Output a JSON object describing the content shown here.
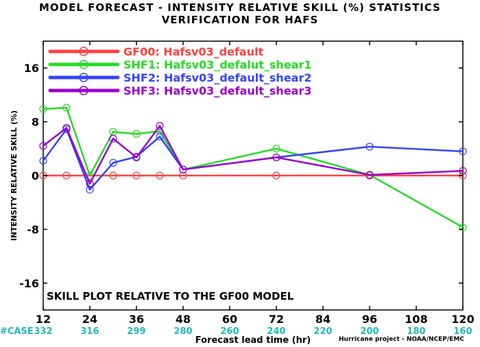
{
  "colors": {
    "GF00": "#ff4040",
    "SHF1": "#22dd22",
    "SHF2": "#3344ff",
    "SHF3": "#9900cc",
    "case_text": "#22b8b8"
  },
  "credit": "Hurricane project - NOAA/NCEP/EMC",
  "chart_data": {
    "type": "line",
    "title": "MODEL FORECAST - INTENSITY RELATIVE SKILL (%) STATISTICS",
    "subtitle": "VERIFICATION FOR HAFS",
    "xlabel": "Forecast lead time (hr)",
    "ylabel": "INTENSITY RELATIVE SKILL (%)",
    "annotation": "SKILL PLOT RELATIVE TO THE GF00 MODEL",
    "xlim": [
      12,
      120
    ],
    "ylim": [
      -20,
      20
    ],
    "xticks": [
      12,
      24,
      36,
      48,
      60,
      72,
      84,
      96,
      108,
      120
    ],
    "yticks": [
      -16,
      -8,
      0,
      8,
      16
    ],
    "case_label": "#CASE",
    "cases": [
      332,
      316,
      299,
      280,
      260,
      240,
      220,
      200,
      180,
      160
    ],
    "legend_position": "top-left",
    "grid": false,
    "series": [
      {
        "key": "GF00",
        "name": "GF00: Hafsv03_default",
        "x": [
          12,
          18,
          24,
          30,
          36,
          42,
          48,
          72,
          96,
          120
        ],
        "y": [
          0,
          0,
          0,
          0,
          0,
          0,
          0,
          0,
          0,
          0
        ]
      },
      {
        "key": "SHF1",
        "name": "SHF1: Hafsv03_defalut_shear1",
        "x": [
          12,
          18,
          24,
          30,
          36,
          42,
          48,
          72,
          96,
          120
        ],
        "y": [
          9.9,
          10.1,
          0,
          6.5,
          6.2,
          6.6,
          0.9,
          4.0,
          0.1,
          -7.7
        ]
      },
      {
        "key": "SHF2",
        "name": "SHF2: Hafsv03_default_shear2",
        "x": [
          12,
          18,
          24,
          30,
          36,
          42,
          48,
          72,
          96,
          120
        ],
        "y": [
          2.2,
          6.9,
          -2.1,
          1.9,
          2.8,
          5.8,
          0.9,
          2.7,
          4.3,
          3.6
        ]
      },
      {
        "key": "SHF3",
        "name": "SHF3: Hafsv03_default_shear3",
        "x": [
          12,
          18,
          24,
          30,
          36,
          42,
          48,
          72,
          96,
          120
        ],
        "y": [
          4.4,
          7.1,
          -1.2,
          5.5,
          2.7,
          7.4,
          0.9,
          2.7,
          0.1,
          0.7
        ]
      }
    ]
  }
}
